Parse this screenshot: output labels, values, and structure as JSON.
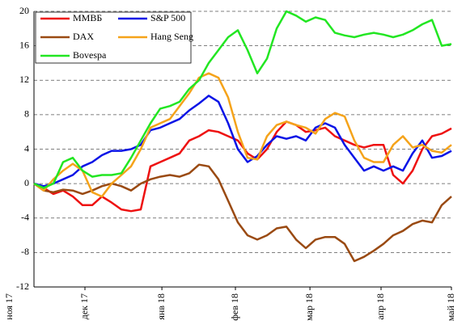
{
  "chart_data": {
    "type": "line",
    "x": [
      0,
      4,
      8,
      12,
      16,
      20,
      24,
      28,
      32,
      36,
      40,
      44,
      48,
      52,
      56,
      60,
      64,
      68,
      72,
      76,
      80,
      84,
      88,
      92,
      96,
      100,
      104,
      108,
      112,
      116,
      120,
      124,
      128,
      132,
      136,
      140,
      144,
      148,
      152,
      156,
      160,
      164,
      168,
      172
    ],
    "xlim": [
      0,
      172
    ],
    "xticks": [
      {
        "value": -10,
        "label": "ноя 17"
      },
      {
        "value": 21,
        "label": "дек 17"
      },
      {
        "value": 52.7,
        "label": "янв 18"
      },
      {
        "value": 83,
        "label": "фев 18"
      },
      {
        "value": 113.7,
        "label": "мар 18"
      },
      {
        "value": 143,
        "label": "апр 18"
      },
      {
        "value": 172,
        "label": "май 18"
      }
    ],
    "ylim": [
      -12,
      20
    ],
    "yticks": [
      -12,
      -8,
      -4,
      0,
      4,
      8,
      12,
      16,
      20
    ],
    "grid": true,
    "legend": "upper left",
    "series": [
      {
        "name": "ММВБ",
        "color": "#ee1111",
        "values": [
          0,
          -0.5,
          -1.2,
          -0.8,
          -1.5,
          -2.5,
          -2.5,
          -1.5,
          -2.2,
          -3,
          -3.2,
          -3,
          2,
          2.5,
          3,
          3.5,
          5,
          5.5,
          6.2,
          6,
          5.5,
          5,
          3.5,
          2.8,
          4,
          6,
          7.2,
          6.8,
          6,
          6.2,
          6.5,
          5.5,
          5,
          4.5,
          4.2,
          4.5,
          4.5,
          1,
          0,
          1.5,
          4,
          5.5,
          5.8,
          6.4
        ]
      },
      {
        "name": "S&P 500",
        "color": "#0a14e6",
        "values": [
          0,
          -0.3,
          0,
          0.5,
          1,
          2,
          2.5,
          3.3,
          3.8,
          3.8,
          4,
          4.5,
          6.2,
          6.5,
          7,
          7.5,
          8.5,
          9.3,
          10.2,
          9.5,
          7,
          4,
          2.5,
          3.2,
          4.5,
          5.5,
          5.2,
          5.5,
          5,
          6.5,
          7,
          6.5,
          4.5,
          3,
          1.5,
          2,
          1.5,
          2,
          1.5,
          3.5,
          5,
          3,
          3.2,
          3.8
        ]
      },
      {
        "name": "DAX",
        "color": "#9a4a12",
        "values": [
          0,
          -0.8,
          -1,
          -0.7,
          -0.8,
          -1.2,
          -0.8,
          -0.3,
          0,
          -0.3,
          -0.8,
          0,
          0.5,
          0.8,
          1,
          0.8,
          1.2,
          2.2,
          2,
          0.5,
          -2,
          -4.5,
          -6,
          -6.5,
          -6,
          -5.2,
          -5,
          -6.5,
          -7.5,
          -6.5,
          -6.2,
          -6.2,
          -7,
          -9,
          -8.5,
          -7.8,
          -7,
          -6,
          -5.5,
          -4.7,
          -4.3,
          -4.5,
          -2.5,
          -1.5
        ]
      },
      {
        "name": "Hang Seng",
        "color": "#f5a31a",
        "values": [
          0,
          -0.8,
          0.5,
          1.5,
          2.3,
          1.5,
          -1,
          -1.5,
          0,
          1,
          2,
          4,
          6.5,
          7,
          7.5,
          9,
          10.5,
          12.3,
          12.8,
          12.3,
          10,
          6,
          3,
          2.8,
          5.5,
          6.8,
          7.2,
          6.8,
          6.5,
          5.8,
          7.5,
          8.2,
          7.8,
          5,
          3,
          2.5,
          2.5,
          4.5,
          5.5,
          4.2,
          4.5,
          3.8,
          3.6,
          4.5
        ]
      },
      {
        "name": "Bovespa",
        "color": "#22e622",
        "values": [
          0,
          -0.5,
          0,
          2.5,
          3,
          1.5,
          0.8,
          1,
          1,
          1.2,
          3,
          5,
          7,
          8.7,
          9,
          9.5,
          11,
          12,
          14,
          15.5,
          17,
          17.8,
          15.5,
          12.8,
          14.5,
          18,
          20,
          19.5,
          18.8,
          19.3,
          19,
          17.5,
          17.2,
          17,
          17.3,
          17.5,
          17.3,
          17,
          17.3,
          17.8,
          18.5,
          19,
          16,
          16.2
        ]
      }
    ]
  }
}
